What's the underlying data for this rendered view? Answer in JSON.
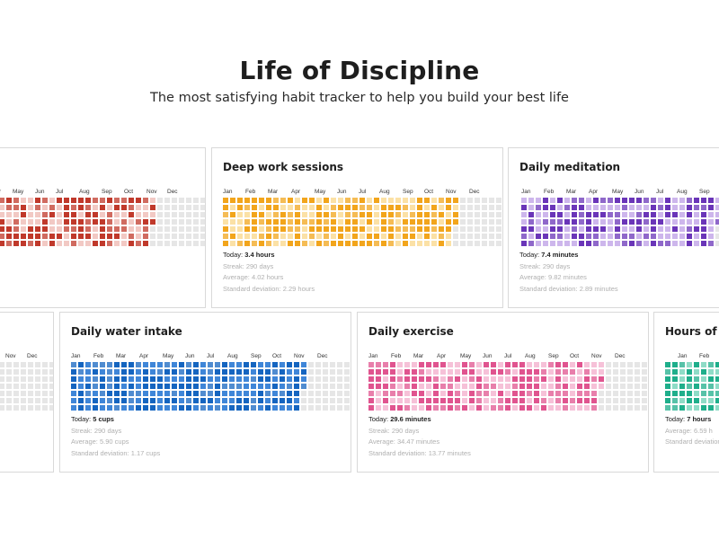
{
  "header": {
    "title": "Life of Discipline",
    "subtitle": "The most satisfying habit tracker to help you build your best life"
  },
  "cards": [
    {
      "id": "row1-partial",
      "title": "",
      "color": "#c0392b",
      "light": "#f2c9c4",
      "empty": "#e6e6e6",
      "filled_fraction": 0.77,
      "months": [
        "Apr",
        "May",
        "Jun",
        "Jul",
        "Aug",
        "Sep",
        "Oct",
        "Nov",
        "Dec"
      ],
      "today_label": "",
      "today_value": "",
      "streak": "",
      "average": "",
      "stddev": ""
    },
    {
      "id": "deep-work",
      "title": "Deep work sessions",
      "color": "#f2a51c",
      "light": "#fbe1a6",
      "empty": "#e6e6e6",
      "filled_fraction": 0.79,
      "months": [
        "Jan",
        "Feb",
        "Mar",
        "Apr",
        "May",
        "Jun",
        "Jul",
        "Aug",
        "Sep",
        "Oct",
        "Nov",
        "Dec"
      ],
      "today_label": "Today:",
      "today_value": "3.4 hours",
      "streak": "Streak: 290 days",
      "average": "Average: 4.02 hours",
      "stddev": "Standard deviation: 2.29 hours"
    },
    {
      "id": "meditation",
      "title": "Daily meditation",
      "color": "#6a35b8",
      "light": "#cdb6ec",
      "empty": "#e6e6e6",
      "filled_fraction": 0.79,
      "months": [
        "Jan",
        "Feb",
        "Mar",
        "Apr",
        "May",
        "Jun",
        "Jul",
        "Aug",
        "Sep"
      ],
      "today_label": "Today:",
      "today_value": "7.4 minutes",
      "streak": "Streak: 290 days",
      "average": "Average: 9.82 minutes",
      "stddev": "Standard deviation: 2.89 minutes"
    },
    {
      "id": "row2-partial",
      "title": "",
      "color": "#888888",
      "light": "#e6e6e6",
      "empty": "#e6e6e6",
      "filled_fraction": 0.0,
      "months": [
        "Nov",
        "Dec"
      ],
      "today_label": "",
      "today_value": "",
      "streak": "",
      "average": "",
      "stddev": ""
    },
    {
      "id": "water",
      "title": "Daily water intake",
      "color": "#1565c0",
      "light": "#3f86d8",
      "empty": "#e6e6e6",
      "filled_fraction": 0.79,
      "months": [
        "Jan",
        "Feb",
        "Mar",
        "Apr",
        "May",
        "Jun",
        "Jul",
        "Aug",
        "Sep",
        "Oct",
        "Nov",
        "Dec"
      ],
      "today_label": "Today:",
      "today_value": "5 cups",
      "streak": "Streak: 290 days",
      "average": "Average: 5.90 cups",
      "stddev": "Standard deviation: 1.17 cups"
    },
    {
      "id": "exercise",
      "title": "Daily exercise",
      "color": "#e0548f",
      "light": "#f6c1d8",
      "empty": "#e6e6e6",
      "filled_fraction": 0.79,
      "months": [
        "Jan",
        "Feb",
        "Mar",
        "Apr",
        "May",
        "Jun",
        "Jul",
        "Aug",
        "Sep",
        "Oct",
        "Nov",
        "Dec"
      ],
      "today_label": "Today:",
      "today_value": "29.6 minutes",
      "streak": "Streak: 290 days",
      "average": "Average: 34.47 minutes",
      "stddev": "Standard deviation: 13.77 minutes"
    },
    {
      "id": "sleep",
      "title": "Hours of sl",
      "color": "#1fae8b",
      "light": "#8fdcc7",
      "empty": "#e6e6e6",
      "filled_fraction": 1.0,
      "months": [
        "Jan",
        "Feb"
      ],
      "today_label": "Today:",
      "today_value": "7 hours",
      "streak": "",
      "average": "Average: 6.59 h",
      "stddev": "Standard deviation:"
    }
  ]
}
